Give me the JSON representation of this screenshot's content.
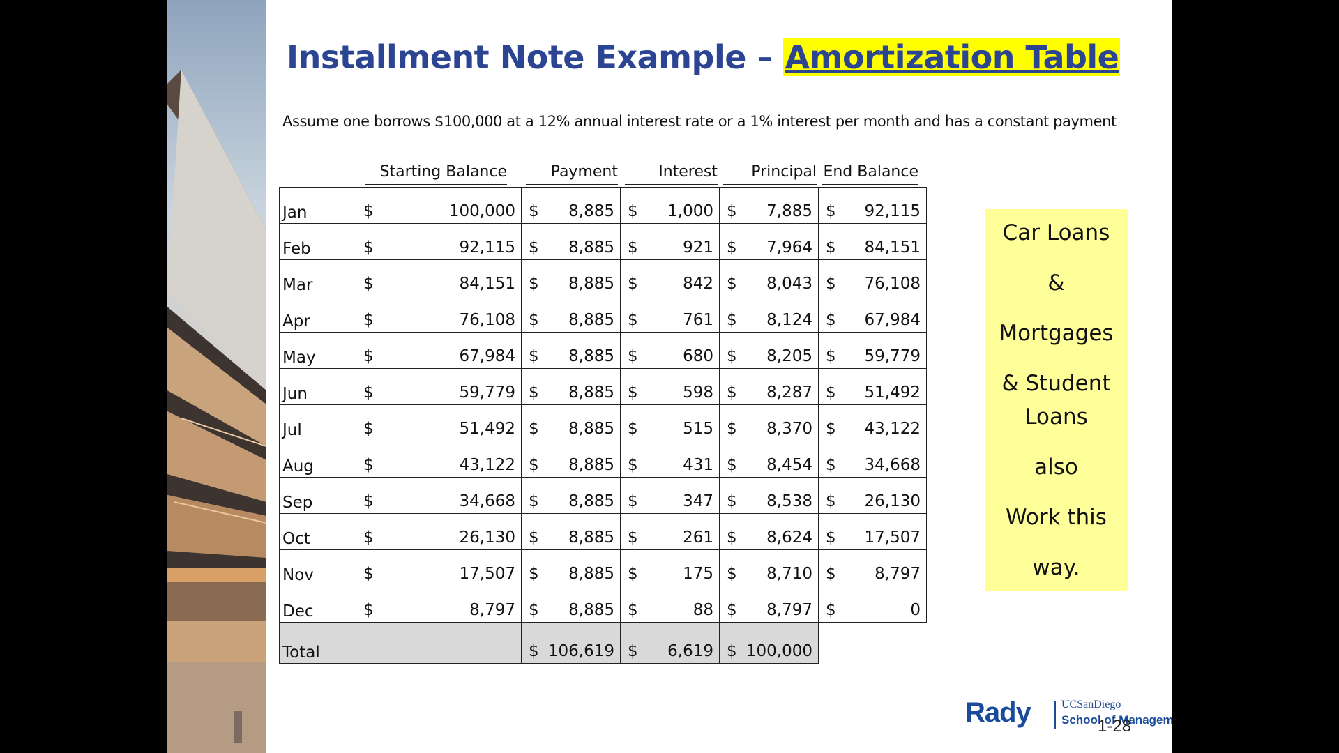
{
  "slide": {
    "title_main": "Installment Note Example – ",
    "title_highlight": "Amortization Table",
    "subtitle": "Assume one borrows $100,000 at a 12% annual interest rate or a 1% interest per month and has a constant payment",
    "page_number": "1-28"
  },
  "table": {
    "headers": [
      "Starting Balance",
      "Payment",
      "Interest",
      "Principal",
      "End Balance"
    ],
    "currency_symbol": "$",
    "rows": [
      {
        "month": "Jan",
        "start": "100,000",
        "payment": "8,885",
        "interest": "1,000",
        "principal": "7,885",
        "end": "92,115"
      },
      {
        "month": "Feb",
        "start": "92,115",
        "payment": "8,885",
        "interest": "921",
        "principal": "7,964",
        "end": "84,151"
      },
      {
        "month": "Mar",
        "start": "84,151",
        "payment": "8,885",
        "interest": "842",
        "principal": "8,043",
        "end": "76,108"
      },
      {
        "month": "Apr",
        "start": "76,108",
        "payment": "8,885",
        "interest": "761",
        "principal": "8,124",
        "end": "67,984"
      },
      {
        "month": "May",
        "start": "67,984",
        "payment": "8,885",
        "interest": "680",
        "principal": "8,205",
        "end": "59,779"
      },
      {
        "month": "Jun",
        "start": "59,779",
        "payment": "8,885",
        "interest": "598",
        "principal": "8,287",
        "end": "51,492"
      },
      {
        "month": "Jul",
        "start": "51,492",
        "payment": "8,885",
        "interest": "515",
        "principal": "8,370",
        "end": "43,122"
      },
      {
        "month": "Aug",
        "start": "43,122",
        "payment": "8,885",
        "interest": "431",
        "principal": "8,454",
        "end": "34,668"
      },
      {
        "month": "Sep",
        "start": "34,668",
        "payment": "8,885",
        "interest": "347",
        "principal": "8,538",
        "end": "26,130"
      },
      {
        "month": "Oct",
        "start": "26,130",
        "payment": "8,885",
        "interest": "261",
        "principal": "8,624",
        "end": "17,507"
      },
      {
        "month": "Nov",
        "start": "17,507",
        "payment": "8,885",
        "interest": "175",
        "principal": "8,710",
        "end": "8,797"
      },
      {
        "month": "Dec",
        "start": "8,797",
        "payment": "8,885",
        "interest": "88",
        "principal": "8,797",
        "end": "0"
      }
    ],
    "total": {
      "label": "Total",
      "payment": "106,619",
      "interest": "6,619",
      "principal": "100,000"
    }
  },
  "note": {
    "lines": [
      "Car Loans",
      "&",
      "Mortgages",
      "& Student",
      "Loans",
      "also",
      "Work this",
      "way."
    ]
  },
  "logo": {
    "brand": "Rady",
    "university": "UCSanDiego",
    "school": "School of Management"
  },
  "colors": {
    "title": "#2c4593",
    "highlight": "#ffff00",
    "note_bg": "#ffff99",
    "total_bg": "#d9d9d9",
    "logo": "#1b4c9b"
  }
}
